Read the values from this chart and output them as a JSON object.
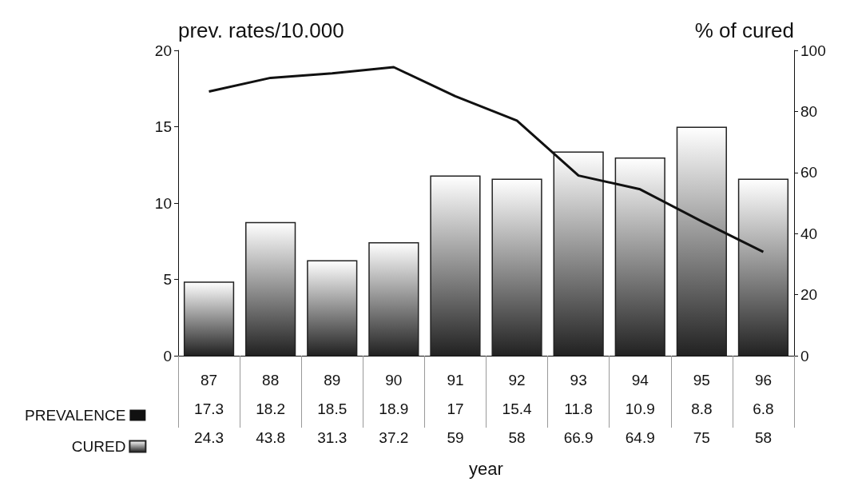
{
  "chart_data": {
    "type": "bar",
    "ylabel": "prev. rates/10.000",
    "y2label": "% of cured",
    "xlabel": "year",
    "categories": [
      "87",
      "88",
      "89",
      "90",
      "91",
      "92",
      "93",
      "94",
      "95",
      "96"
    ],
    "series": [
      {
        "name": "PREVALENCE",
        "type": "line",
        "color": "#111111",
        "values": [
          17.3,
          18.2,
          18.5,
          18.9,
          17,
          15.4,
          11.8,
          10.9,
          8.8,
          6.8
        ]
      },
      {
        "name": "CURED",
        "axis": "y2",
        "color": "#222222",
        "values": [
          24.3,
          43.8,
          31.3,
          37.2,
          59,
          58,
          66.9,
          64.9,
          75,
          58
        ]
      }
    ],
    "ylim": [
      0,
      20
    ],
    "yticks": [
      0,
      5,
      10,
      15,
      20
    ],
    "y2lim": [
      0,
      100
    ],
    "y2ticks": [
      0,
      20,
      40,
      60,
      80,
      100
    ],
    "grid": false,
    "legend": "bottom left",
    "marker": "none",
    "data_labels": true
  }
}
